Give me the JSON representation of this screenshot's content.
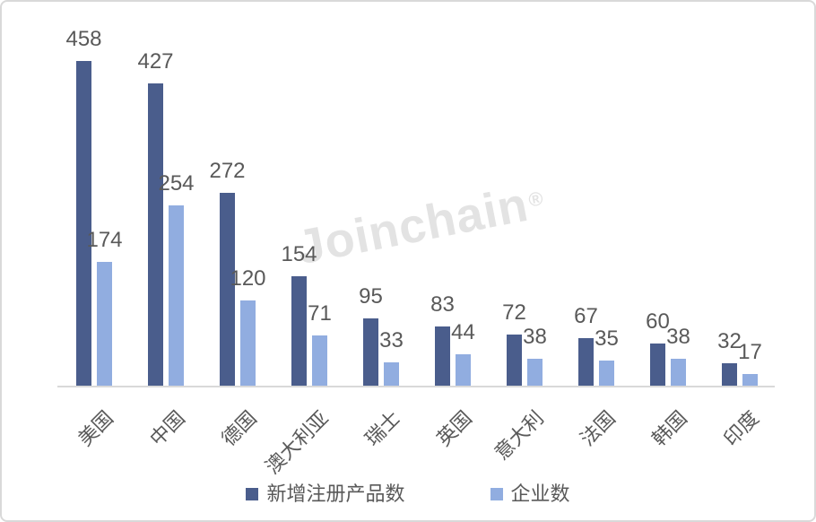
{
  "watermark": {
    "text": "Joinchain",
    "reg": "®"
  },
  "colors": {
    "series_products": "#4A5D8C",
    "series_companies": "#91ADE0",
    "label_text": "#595959",
    "axis_line": "#D9D9D9",
    "frame_border": "#D9D9D9",
    "watermark": "#E3E3E3",
    "background": "#FFFFFF"
  },
  "chart_data": {
    "type": "bar",
    "title": "",
    "xlabel": "",
    "ylabel": "",
    "categories": [
      "美国",
      "中国",
      "德国",
      "澳大利亚",
      "瑞士",
      "英国",
      "意大利",
      "法国",
      "韩国",
      "印度"
    ],
    "series": [
      {
        "name": "新增注册产品数",
        "color": "#4A5D8C",
        "values": [
          458,
          427,
          272,
          154,
          95,
          83,
          72,
          67,
          60,
          32
        ]
      },
      {
        "name": "企业数",
        "color": "#91ADE0",
        "values": [
          174,
          254,
          120,
          71,
          33,
          44,
          38,
          35,
          38,
          17
        ]
      }
    ],
    "ylim": [
      0,
      480
    ],
    "grid": false,
    "y_axis_visible": false,
    "value_labels": true,
    "x_tick_rotation_deg": 45,
    "legend_position": "bottom-center"
  }
}
